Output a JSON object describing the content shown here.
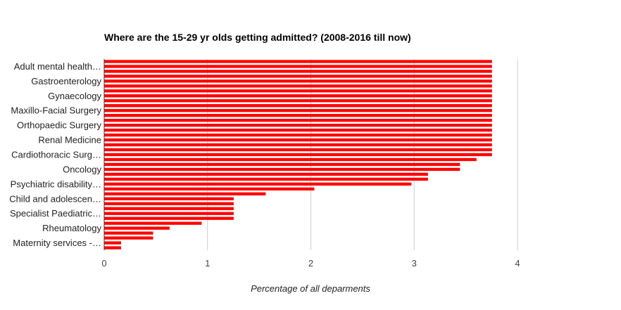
{
  "chart_data": {
    "type": "bar",
    "orientation": "horizontal",
    "title": "Where are the 15-29 yr olds getting admitted? (2008-2016 till now)",
    "xlabel": "Percentage of all deparments",
    "ylabel": "",
    "xlim": [
      0,
      4.5
    ],
    "x_ticks": [
      0,
      1,
      2,
      3,
      4
    ],
    "grid": true,
    "legend": "none",
    "bar_color": "#ff0000",
    "visible_category_labels": [
      "Adult mental health…",
      "Gastroenterology",
      "Gynaecology",
      "Maxillo-Facial Surgery",
      "Orthopaedic Surgery",
      "Renal Medicine",
      "Cardiothoracic Surg…",
      "Oncology",
      "Psychiatric disability…",
      "Child and adolescen…",
      "Specialist Paediatric…",
      "Rheumatology",
      "Maternity services -…"
    ],
    "values": [
      3.75,
      3.75,
      3.75,
      3.75,
      3.75,
      3.75,
      3.75,
      3.75,
      3.75,
      3.75,
      3.75,
      3.75,
      3.75,
      3.75,
      3.75,
      3.75,
      3.75,
      3.75,
      3.75,
      3.75,
      3.6,
      3.44,
      3.44,
      3.13,
      3.13,
      2.97,
      2.03,
      1.56,
      1.25,
      1.25,
      1.25,
      1.25,
      1.25,
      0.94,
      0.63,
      0.47,
      0.47,
      0.16,
      0.16
    ]
  }
}
